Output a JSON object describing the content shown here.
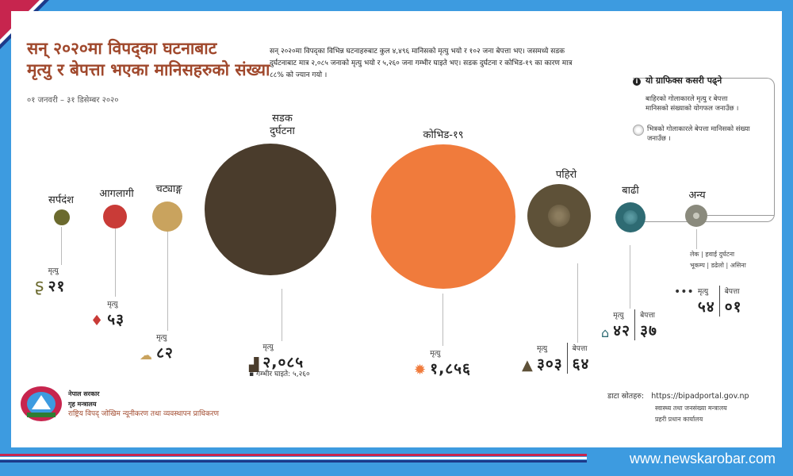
{
  "title": {
    "line1": "सन् २०२०मा विपद्का घटनाबाट",
    "line2": "मृत्यु र बेपत्ता भएका मानिसहरुको संख्या"
  },
  "date_range": "०१ जनवरी – ३१ डिसेम्बर २०२०",
  "intro": "सन् २०२०मा विपद्का विभिन्न घटनाहरुबाट कुल ४,४९६ मानिसको मृत्यु भयो र १०२ जना बेपत्ता भए। जसमध्ये सडक दुर्घटनाबाट मात्र २,०८५ जनाको मृत्यु भयो र ५,२६० जना गम्भीर घाइते भए। सडक दुर्घटना र कोभिड-१९ का कारण मात्र ८८% को ज्यान गयो ।",
  "legend": {
    "heading": "यो ग्राफिक्स कसरी पढ्ने",
    "outer": "बाहिरको गोलाकारले मृत्यु र बेपत्ता मानिसको संख्याको योगफल जनाउँछ ।",
    "inner": "भित्रको गोलाकारले बेपत्ता मानिसको संख्या जनाउँछ ।"
  },
  "labels": {
    "death": "मृत्यु",
    "missing": "बेपत्ता"
  },
  "items": [
    {
      "name": "सर्पदंश",
      "deaths": "२१",
      "color": "#6b6a2e",
      "icon": "snake-icon"
    },
    {
      "name": "आगलागी",
      "deaths": "५३",
      "color": "#c93b37",
      "icon": "fire-drop-icon"
    },
    {
      "name": "चट्याङ्ग",
      "deaths": "८२",
      "color": "#c9a35e",
      "icon": "lightning-cloud-icon"
    },
    {
      "name": "सडक दुर्घटना",
      "name1": "सडक",
      "name2": "दुर्घटना",
      "deaths": "२,०८५",
      "injured_label": "गम्भीर घाइते: ५,२६०",
      "color": "#4a3c2c",
      "icon": "crash-icon"
    },
    {
      "name": "कोभिड-१९",
      "deaths": "१,८५६",
      "color": "#f07b3c",
      "icon": "virus-icon"
    },
    {
      "name": "पहिरो",
      "deaths": "३०३",
      "missing": "६४",
      "color": "#5e5138",
      "icon": "landslide-icon"
    },
    {
      "name": "बाढी",
      "deaths": "४२",
      "missing": "३७",
      "color": "#2e6b73",
      "icon": "flood-icon"
    },
    {
      "name": "अन्य",
      "deaths": "५४",
      "missing": "०१",
      "color": "#8a8a7d",
      "icon": "dots-icon",
      "others_line1": "लेक | हवाई दुर्घटना",
      "others_line2": "भूकम्प | डढेलो | असिना"
    }
  ],
  "source": {
    "label": "डाटा स्रोतहरु:",
    "url": "https://bipadportal.gov.np",
    "line2": "स्वास्थ्य तथा जनसंख्या मन्त्रालय",
    "line3": "प्रहरी प्रधान कार्यालय"
  },
  "govt": {
    "line1": "नेपाल सरकार",
    "line2": "गृह मन्त्रालय",
    "line3": "राष्ट्रिय विपद् जोखिम न्यूनीकरण तथा व्यवस्थापन प्राधिकरण"
  },
  "site": "www.newskarobar.com"
}
